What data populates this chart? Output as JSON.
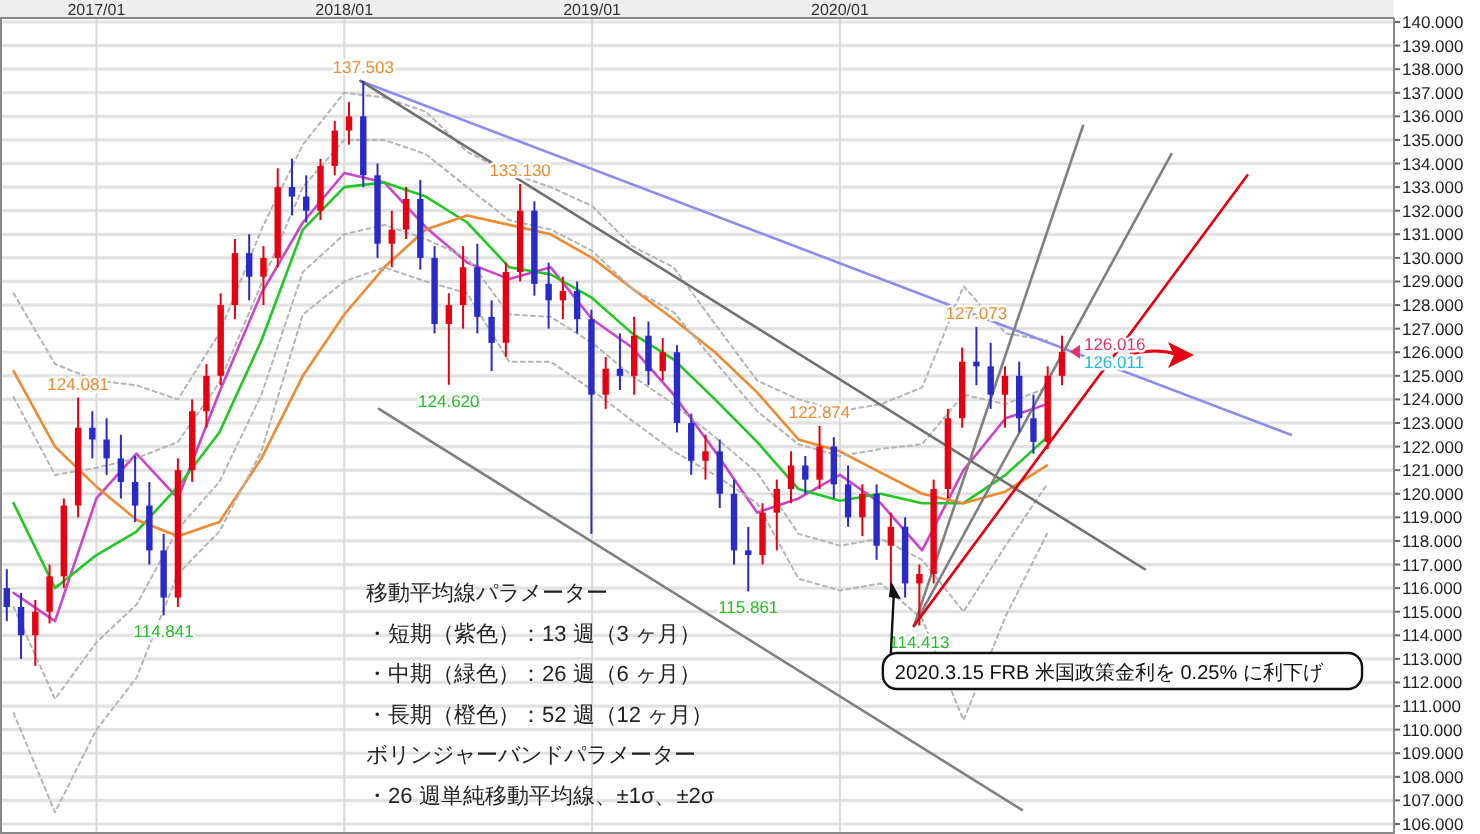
{
  "chart_data": {
    "type": "candlestick",
    "colors": [
      "#2a2ac8",
      "#2a2ac8",
      "#e60012",
      "#e60012",
      "#e60012",
      "#e60012",
      "#2a2ac8",
      "#2a2ac8",
      "#2a2ac8",
      "#2a2ac8",
      "#2a2ac8",
      "#2a2ac8",
      "#e60012",
      "#e60012",
      "#e60012",
      "#e60012",
      "#e60012",
      "#2a2ac8",
      "#e60012",
      "#e60012",
      "#2a2ac8",
      "#2a2ac8",
      "#e60012",
      "#e60012",
      "#e60012",
      "#2a2ac8",
      "#2a2ac8",
      "#e60012",
      "#e60012",
      "#2a2ac8",
      "#2a2ac8",
      "#e60012",
      "#e60012",
      "#2a2ac8",
      "#2a2ac8",
      "#e60012",
      "#e60012",
      "#2a2ac8",
      "#2a2ac8",
      "#e60012",
      "#2a2ac8",
      "#2a2ac8",
      "#e60012",
      "#2a2ac8",
      "#e60012",
      "#2a2ac8",
      "#e60012",
      "#2a2ac8",
      "#2a2ac8",
      "#e60012",
      "#2a2ac8",
      "#2a2ac8",
      "#2a2ac8",
      "#e60012",
      "#e60012",
      "#e60012",
      "#2a2ac8",
      "#e60012",
      "#2a2ac8",
      "#2a2ac8",
      "#e60012",
      "#2a2ac8",
      "#e60012",
      "#2a2ac8",
      "#e60012",
      "#e60012",
      "#e60012",
      "#e60012",
      "#2a2ac8",
      "#2a2ac8",
      "#e60012",
      "#2a2ac8",
      "#2a2ac8",
      "#e60012",
      "#e60012"
    ],
    "x": [
      "2016-08-22",
      "2016-09-12",
      "2016-10-03",
      "2016-10-24",
      "2016-11-14",
      "2016-12-05",
      "2016-12-26",
      "2017-01-16",
      "2017-02-06",
      "2017-02-27",
      "2017-03-20",
      "2017-04-10",
      "2017-05-01",
      "2017-05-22",
      "2017-06-12",
      "2017-07-03",
      "2017-07-24",
      "2017-08-14",
      "2017-09-04",
      "2017-09-25",
      "2017-10-16",
      "2017-11-06",
      "2017-11-27",
      "2017-12-18",
      "2018-01-08",
      "2018-01-29",
      "2018-02-19",
      "2018-03-12",
      "2018-04-02",
      "2018-04-23",
      "2018-05-14",
      "2018-06-04",
      "2018-06-25",
      "2018-07-16",
      "2018-08-06",
      "2018-08-27",
      "2018-09-17",
      "2018-10-08",
      "2018-10-29",
      "2018-11-19",
      "2018-12-10",
      "2018-12-31",
      "2019-01-21",
      "2019-02-11",
      "2019-03-04",
      "2019-03-25",
      "2019-04-15",
      "2019-05-06",
      "2019-05-27",
      "2019-06-17",
      "2019-07-08",
      "2019-07-29",
      "2019-08-19",
      "2019-09-09",
      "2019-09-30",
      "2019-10-21",
      "2019-11-11",
      "2019-12-02",
      "2019-12-23",
      "2020-01-13",
      "2020-02-03",
      "2020-02-24",
      "2020-03-16",
      "2020-04-06",
      "2020-04-27",
      "2020-05-18",
      "2020-06-08",
      "2020-06-29",
      "2020-07-20",
      "2020-08-10",
      "2020-08-31",
      "2020-09-21",
      "2020-10-12",
      "2020-11-02",
      "2020-11-23"
    ],
    "ohlc": [
      [
        116.0,
        116.8,
        114.6,
        115.2
      ],
      [
        115.2,
        115.8,
        113.0,
        114.0
      ],
      [
        114.0,
        115.5,
        112.7,
        115.0
      ],
      [
        115.0,
        117.0,
        114.5,
        116.5
      ],
      [
        116.5,
        119.8,
        116.0,
        119.5
      ],
      [
        119.5,
        124.081,
        119.0,
        122.8
      ],
      [
        122.8,
        123.5,
        121.5,
        122.3
      ],
      [
        122.3,
        123.2,
        120.8,
        121.5
      ],
      [
        121.5,
        122.5,
        119.8,
        120.5
      ],
      [
        120.5,
        121.6,
        118.8,
        119.5
      ],
      [
        119.5,
        120.5,
        117.0,
        117.6
      ],
      [
        117.6,
        118.3,
        114.841,
        115.6
      ],
      [
        115.6,
        121.5,
        115.2,
        121.0
      ],
      [
        121.0,
        124.0,
        120.5,
        123.5
      ],
      [
        123.5,
        125.5,
        122.8,
        125.0
      ],
      [
        125.0,
        128.5,
        124.6,
        128.0
      ],
      [
        128.0,
        130.8,
        127.4,
        130.2
      ],
      [
        130.2,
        131.0,
        128.2,
        129.2
      ],
      [
        129.2,
        130.5,
        128.0,
        130.0
      ],
      [
        130.0,
        133.8,
        129.6,
        133.0
      ],
      [
        133.0,
        134.2,
        131.8,
        132.6
      ],
      [
        132.6,
        133.5,
        131.5,
        132.0
      ],
      [
        132.0,
        134.2,
        131.6,
        133.9
      ],
      [
        133.9,
        135.8,
        133.5,
        135.4
      ],
      [
        135.4,
        136.6,
        134.8,
        136.0
      ],
      [
        136.0,
        137.503,
        133.0,
        133.5
      ],
      [
        133.5,
        134.0,
        130.0,
        130.6
      ],
      [
        130.6,
        132.0,
        129.6,
        131.2
      ],
      [
        131.2,
        133.0,
        130.8,
        132.5
      ],
      [
        132.5,
        133.3,
        129.5,
        130.0
      ],
      [
        130.0,
        130.5,
        126.8,
        127.2
      ],
      [
        127.2,
        128.5,
        124.62,
        128.0
      ],
      [
        128.0,
        130.5,
        127.0,
        129.6
      ],
      [
        129.6,
        130.6,
        126.8,
        127.5
      ],
      [
        127.5,
        128.2,
        125.2,
        126.4
      ],
      [
        126.4,
        129.8,
        125.8,
        129.4
      ],
      [
        129.4,
        133.13,
        129.0,
        132.0
      ],
      [
        132.0,
        132.4,
        128.4,
        128.9
      ],
      [
        128.9,
        129.8,
        127.0,
        128.2
      ],
      [
        128.2,
        129.2,
        127.4,
        128.6
      ],
      [
        128.6,
        129.0,
        126.8,
        127.4
      ],
      [
        127.4,
        127.8,
        118.3,
        124.2
      ],
      [
        124.2,
        125.8,
        123.6,
        125.3
      ],
      [
        125.3,
        126.8,
        124.4,
        125.0
      ],
      [
        125.0,
        127.5,
        124.2,
        126.7
      ],
      [
        126.7,
        127.3,
        124.6,
        125.2
      ],
      [
        125.2,
        126.6,
        124.8,
        126.0
      ],
      [
        126.0,
        126.3,
        122.6,
        123.0
      ],
      [
        123.0,
        123.4,
        120.8,
        121.4
      ],
      [
        121.4,
        122.5,
        120.6,
        121.8
      ],
      [
        121.8,
        122.3,
        119.4,
        120.0
      ],
      [
        120.0,
        120.6,
        117.0,
        117.6
      ],
      [
        117.6,
        118.6,
        115.861,
        117.4
      ],
      [
        117.4,
        119.6,
        117.0,
        119.2
      ],
      [
        119.2,
        120.6,
        117.6,
        120.2
      ],
      [
        120.2,
        121.8,
        119.6,
        121.2
      ],
      [
        121.2,
        121.6,
        120.0,
        120.6
      ],
      [
        120.6,
        122.874,
        120.2,
        122.0
      ],
      [
        122.0,
        122.4,
        119.8,
        120.4
      ],
      [
        120.4,
        121.2,
        118.6,
        119.0
      ],
      [
        119.0,
        120.4,
        118.2,
        120.0
      ],
      [
        120.0,
        120.4,
        117.2,
        117.8
      ],
      [
        117.8,
        119.2,
        116.0,
        118.6
      ],
      [
        118.6,
        119.0,
        115.6,
        116.2
      ],
      [
        116.2,
        117.0,
        114.413,
        116.6
      ],
      [
        116.6,
        120.6,
        116.2,
        120.2
      ],
      [
        120.2,
        123.6,
        119.8,
        123.2
      ],
      [
        123.2,
        126.2,
        122.8,
        125.6
      ],
      [
        125.6,
        127.073,
        124.6,
        125.4
      ],
      [
        125.4,
        126.4,
        123.6,
        124.2
      ],
      [
        124.2,
        125.4,
        122.8,
        125.0
      ],
      [
        125.0,
        125.6,
        122.6,
        123.2
      ],
      [
        123.2,
        124.2,
        121.7,
        122.2
      ],
      [
        122.2,
        125.4,
        121.9,
        125.0
      ],
      [
        125.0,
        126.7,
        124.6,
        126.016
      ]
    ],
    "series": [
      {
        "type": "line",
        "color": "#cc44cc",
        "x": [
          "2016-09-01",
          "2016-11-01",
          "2017-01-01",
          "2017-03-01",
          "2017-05-01",
          "2017-07-01",
          "2017-09-01",
          "2017-11-01",
          "2018-01-01",
          "2018-03-01",
          "2018-05-01",
          "2018-07-01",
          "2018-09-01",
          "2018-11-01",
          "2019-01-01",
          "2019-03-01",
          "2019-05-01",
          "2019-07-01",
          "2019-09-01",
          "2019-11-01",
          "2020-01-01",
          "2020-03-01",
          "2020-05-01",
          "2020-07-01",
          "2020-09-01",
          "2020-11-01"
        ],
        "values": [
          115.8,
          114.6,
          119.8,
          121.7,
          119.8,
          124.3,
          128.5,
          131.5,
          133.6,
          133.2,
          131.3,
          129.8,
          129.1,
          129.6,
          127.4,
          126.2,
          124.2,
          121.8,
          119.2,
          119.8,
          120.8,
          119.6,
          117.6,
          121.0,
          123.2,
          123.8
        ]
      },
      {
        "type": "line",
        "color": "#22c822",
        "x": [
          "2016-09-01",
          "2016-11-01",
          "2017-01-01",
          "2017-03-01",
          "2017-05-01",
          "2017-07-01",
          "2017-09-01",
          "2017-11-01",
          "2018-01-01",
          "2018-03-01",
          "2018-05-01",
          "2018-07-01",
          "2018-09-01",
          "2018-11-01",
          "2019-01-01",
          "2019-03-01",
          "2019-05-01",
          "2019-07-01",
          "2019-09-01",
          "2019-11-01",
          "2020-01-01",
          "2020-03-01",
          "2020-05-01",
          "2020-07-01",
          "2020-09-01",
          "2020-11-01"
        ],
        "values": [
          119.6,
          116,
          117.4,
          118.4,
          120.3,
          122.6,
          126.5,
          131.2,
          133,
          133.2,
          132.6,
          131.5,
          129.6,
          129.3,
          128.3,
          126.8,
          125.7,
          124,
          122.2,
          120.2,
          119.7,
          120,
          119.6,
          119.6,
          120.8,
          122.4
        ]
      },
      {
        "type": "line",
        "color": "#f08a30",
        "x": [
          "2016-09-01",
          "2016-11-01",
          "2017-01-01",
          "2017-03-01",
          "2017-05-01",
          "2017-07-01",
          "2017-09-01",
          "2017-11-01",
          "2018-01-01",
          "2018-03-01",
          "2018-05-01",
          "2018-07-01",
          "2018-09-01",
          "2018-11-01",
          "2019-01-01",
          "2019-03-01",
          "2019-05-01",
          "2019-07-01",
          "2019-09-01",
          "2019-11-01",
          "2020-01-01",
          "2020-03-01",
          "2020-05-01",
          "2020-07-01",
          "2020-09-01",
          "2020-11-01"
        ],
        "values": [
          125.2,
          122,
          120.3,
          118.9,
          118.2,
          118.8,
          121.5,
          125,
          127.6,
          129.6,
          131.2,
          131.8,
          131.4,
          131,
          130,
          128.7,
          127.4,
          126,
          124.3,
          122.3,
          121.8,
          120.9,
          120,
          119.6,
          120.1,
          121.2
        ]
      },
      {
        "type": "line",
        "color": "#b4b4b4",
        "line_style": "dotted",
        "x": [
          "2016-09-01",
          "2016-11-01",
          "2017-01-01",
          "2017-03-01",
          "2017-05-01",
          "2017-07-01",
          "2017-09-01",
          "2017-11-01",
          "2018-01-01",
          "2018-03-01",
          "2018-05-01",
          "2018-07-01",
          "2018-09-01",
          "2018-11-01",
          "2019-01-01",
          "2019-03-01",
          "2019-05-01",
          "2019-07-01",
          "2019-09-01",
          "2019-11-01",
          "2020-01-01",
          "2020-03-01",
          "2020-05-01",
          "2020-07-01",
          "2020-09-01",
          "2020-11-01"
        ],
        "values": [
          128.5,
          125.5,
          124.8,
          124.6,
          124.0,
          126.8,
          131.2,
          134.8,
          137.0,
          136.8,
          136.2,
          134.5,
          133.6,
          133.0,
          132.2,
          130.5,
          129.6,
          127.2,
          124.8,
          124.0,
          123.5,
          123.8,
          124.5,
          128.8,
          126.8,
          126.5
        ]
      },
      {
        "type": "line",
        "color": "#b4b4b4",
        "line_style": "dotted",
        "x": [
          "2016-09-01",
          "2016-11-01",
          "2017-01-01",
          "2017-03-01",
          "2017-05-01",
          "2017-07-01",
          "2017-09-01",
          "2017-11-01",
          "2018-01-01",
          "2018-03-01",
          "2018-05-01",
          "2018-07-01",
          "2018-09-01",
          "2018-11-01",
          "2019-01-01",
          "2019-03-01",
          "2019-05-01",
          "2019-07-01",
          "2019-09-01",
          "2019-11-01",
          "2020-01-01",
          "2020-03-01",
          "2020-05-01",
          "2020-07-01",
          "2020-09-01",
          "2020-11-01"
        ],
        "values": [
          124.1,
          120.8,
          121.1,
          121.5,
          122.2,
          124.7,
          128.9,
          133.0,
          135.0,
          135.0,
          134.4,
          133.0,
          131.6,
          131.2,
          130.3,
          128.7,
          127.7,
          125.6,
          123.5,
          122.1,
          121.6,
          121.9,
          122.1,
          124.2,
          123.8,
          124.5
        ]
      },
      {
        "type": "line",
        "color": "#b4b4b4",
        "line_style": "dotted",
        "x": [
          "2016-09-01",
          "2016-11-01",
          "2017-01-01",
          "2017-03-01",
          "2017-05-01",
          "2017-07-01",
          "2017-09-01",
          "2017-11-01",
          "2018-01-01",
          "2018-03-01",
          "2018-05-01",
          "2018-07-01",
          "2018-09-01",
          "2018-11-01",
          "2019-01-01",
          "2019-03-01",
          "2019-05-01",
          "2019-07-01",
          "2019-09-01",
          "2019-11-01",
          "2020-01-01",
          "2020-03-01",
          "2020-05-01",
          "2020-07-01",
          "2020-09-01",
          "2020-11-01"
        ],
        "values": [
          115.2,
          111.3,
          113.7,
          115.3,
          118.5,
          120.5,
          124.2,
          129.4,
          131.0,
          131.4,
          130.8,
          130.0,
          127.6,
          127.5,
          126.4,
          125.0,
          123.8,
          122.4,
          120.9,
          118.3,
          117.8,
          118.1,
          117.2,
          115.0,
          117.8,
          120.4
        ]
      },
      {
        "type": "line",
        "color": "#b4b4b4",
        "line_style": "dotted",
        "x": [
          "2016-09-01",
          "2016-11-01",
          "2017-01-01",
          "2017-03-01",
          "2017-05-01",
          "2017-07-01",
          "2017-09-01",
          "2017-11-01",
          "2018-01-01",
          "2018-03-01",
          "2018-05-01",
          "2018-07-01",
          "2018-09-01",
          "2018-11-01",
          "2019-01-01",
          "2019-03-01",
          "2019-05-01",
          "2019-07-01",
          "2019-09-01",
          "2019-11-01",
          "2020-01-01",
          "2020-03-01",
          "2020-05-01",
          "2020-07-01",
          "2020-09-01",
          "2020-11-01"
        ],
        "values": [
          110.7,
          106.5,
          110.0,
          112.2,
          116.6,
          118.4,
          121.8,
          127.6,
          129.0,
          129.6,
          129.0,
          128.5,
          125.6,
          125.6,
          124.4,
          123.1,
          121.8,
          120.8,
          119.6,
          116.4,
          115.9,
          116.2,
          114.7,
          110.4,
          114.8,
          118.3
        ]
      },
      {
        "type": "line",
        "color": "#8c8cf0",
        "x": [
          "2018-01-25",
          "2021-10-26"
        ],
        "values": [
          137.5,
          122.5
        ]
      },
      {
        "type": "line",
        "color": "#707070",
        "x": [
          "2018-01-25",
          "2021-03-25"
        ],
        "values": [
          137.5,
          116.8
        ]
      },
      {
        "type": "line",
        "color": "#808080",
        "x": [
          "2018-02-21",
          "2020-09-25"
        ],
        "values": [
          123.6,
          106.6
        ]
      },
      {
        "type": "line",
        "color": "#808080",
        "x": [
          "2020-04-19",
          "2020-12-24"
        ],
        "values": [
          114.4,
          135.6
        ]
      },
      {
        "type": "line",
        "color": "#808080",
        "x": [
          "2020-04-19",
          "2021-05-03"
        ],
        "values": [
          114.4,
          134.4
        ]
      },
      {
        "type": "line",
        "color": "#e60012",
        "x": [
          "2020-04-19",
          "2021-08-23"
        ],
        "values": [
          114.4,
          133.5
        ]
      }
    ],
    "xlim": [
      "2016-08-12",
      "2022-03-27"
    ],
    "xticks": [
      {
        "value": "2017-01-01",
        "label": "2017/01"
      },
      {
        "value": "2018-01-01",
        "label": "2018/01"
      },
      {
        "value": "2019-01-01",
        "label": "2019/01"
      },
      {
        "value": "2020-01-01",
        "label": "2020/01"
      }
    ],
    "ylim": [
      106,
      140
    ],
    "yticks": [
      {
        "value": 106,
        "label": "106.000"
      },
      {
        "value": 107,
        "label": "107.000"
      },
      {
        "value": 108,
        "label": "108.000"
      },
      {
        "value": 109,
        "label": "109.000"
      },
      {
        "value": 110,
        "label": "110.000"
      },
      {
        "value": 111,
        "label": "111.000"
      },
      {
        "value": 112,
        "label": "112.000"
      },
      {
        "value": 113,
        "label": "113.000"
      },
      {
        "value": 114,
        "label": "114.000"
      },
      {
        "value": 115,
        "label": "115.000"
      },
      {
        "value": 116,
        "label": "116.000"
      },
      {
        "value": 117,
        "label": "117.000"
      },
      {
        "value": 118,
        "label": "118.000"
      },
      {
        "value": 119,
        "label": "119.000"
      },
      {
        "value": 120,
        "label": "120.000"
      },
      {
        "value": 121,
        "label": "121.000"
      },
      {
        "value": 122,
        "label": "122.000"
      },
      {
        "value": 123,
        "label": "123.000"
      },
      {
        "value": 124,
        "label": "124.000"
      },
      {
        "value": 125,
        "label": "125.000"
      },
      {
        "value": 126,
        "label": "126.000"
      },
      {
        "value": 127,
        "label": "127.000"
      },
      {
        "value": 128,
        "label": "128.000"
      },
      {
        "value": 129,
        "label": "129.000"
      },
      {
        "value": 130,
        "label": "130.000"
      },
      {
        "value": 131,
        "label": "131.000"
      },
      {
        "value": 132,
        "label": "132.000"
      },
      {
        "value": 133,
        "label": "133.000"
      },
      {
        "value": 134,
        "label": "134.000"
      },
      {
        "value": 135,
        "label": "135.000"
      },
      {
        "value": 136,
        "label": "136.000"
      },
      {
        "value": 137,
        "label": "137.000"
      },
      {
        "value": 138,
        "label": "138.000"
      },
      {
        "value": 139,
        "label": "139.000"
      },
      {
        "value": 140,
        "label": "140.000"
      }
    ],
    "grid": true,
    "annotations": [
      "移動平均線パラメーター",
      "・短期（紫色）：13 週（3 ヶ月）",
      "・中期（緑色）：26 週（6 ヶ月）",
      "・長期（橙色）：52 週（12 ヶ月）",
      "ボリンジャーバンドパラメーター",
      "・26 週単純移動平均線、±1σ、±2σ",
      {
        "text": "124.081",
        "x": "2016-12-05",
        "y": 124.081
      },
      {
        "text": "114.841",
        "x": "2017-04-10",
        "y": 114.841
      },
      {
        "text": "137.503",
        "x": "2018-01-29",
        "y": 137.503
      },
      {
        "text": "124.620",
        "x": "2018-06-04",
        "y": 124.62
      },
      {
        "text": "133.130",
        "x": "2018-09-17",
        "y": 133.13
      },
      {
        "text": "115.861",
        "x": "2019-08-19",
        "y": 115.861
      },
      {
        "text": "122.874",
        "x": "2019-12-02",
        "y": 122.874
      },
      {
        "text": "114.413",
        "x": "2020-04-27",
        "y": 114.413
      },
      {
        "text": "127.073",
        "x": "2020-07-20",
        "y": 127.073
      },
      {
        "text": "126.016",
        "x": "2020-11-23",
        "y": 126.016
      },
      {
        "text": "126.011",
        "x": "2020-11-23",
        "y": 126.011
      },
      {
        "text": "2020.3.15 FRB 米国政策金利を 0.25% に利下げ",
        "x": "2020-03-16",
        "y": 116.3
      }
    ]
  }
}
